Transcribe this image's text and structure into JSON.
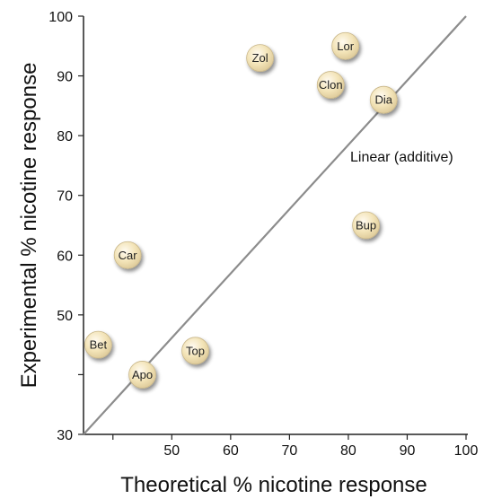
{
  "chart_data": {
    "type": "scatter",
    "xlabel": "Theoretical % nicotine response",
    "ylabel": "Experimental % nicotine response",
    "xlim": [
      35,
      100
    ],
    "ylim": [
      30,
      100
    ],
    "xticks": [
      50,
      60,
      70,
      80,
      90,
      100
    ],
    "yticks": [
      30,
      50,
      60,
      70,
      80,
      90,
      100
    ],
    "grid": false,
    "points": [
      {
        "label": "Zol",
        "x": 65,
        "y": 93
      },
      {
        "label": "Lor",
        "x": 79.5,
        "y": 95
      },
      {
        "label": "Clon",
        "x": 77,
        "y": 88.5
      },
      {
        "label": "Dia",
        "x": 86,
        "y": 86
      },
      {
        "label": "Bup",
        "x": 83,
        "y": 65
      },
      {
        "label": "Car",
        "x": 42.5,
        "y": 60
      },
      {
        "label": "Bet",
        "x": 37.5,
        "y": 45
      },
      {
        "label": "Top",
        "x": 54,
        "y": 44
      },
      {
        "label": "Apo",
        "x": 45,
        "y": 40
      }
    ],
    "reference_line": {
      "label": "Linear (additive)",
      "from": [
        35,
        30
      ],
      "to": [
        100,
        100
      ]
    },
    "colors": {
      "marker_fill": "#f1e0b0",
      "marker_stroke": "#c9b78a",
      "line": "#8c8c8c",
      "axis": "#222222"
    }
  }
}
